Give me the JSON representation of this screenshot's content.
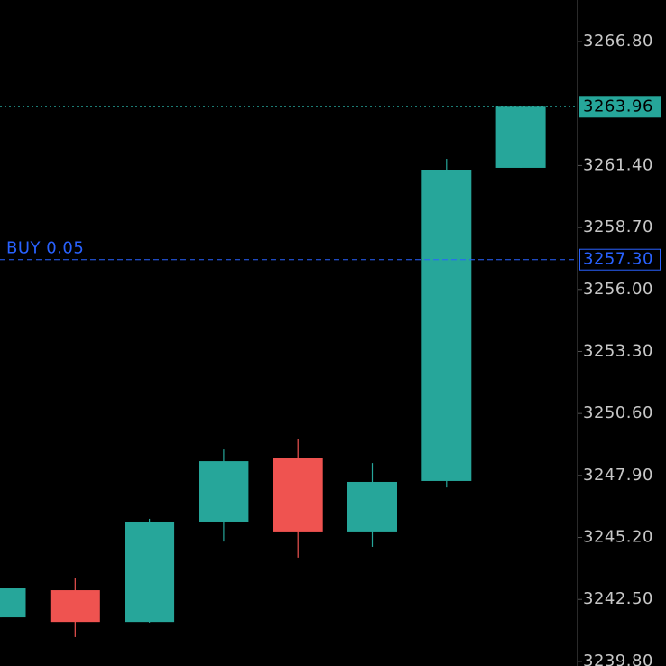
{
  "chart_data": {
    "type": "candlestick",
    "open": [
      3241.72,
      3242.9,
      3241.52,
      3245.89,
      3248.68,
      3245.46,
      3247.66,
      3261.3
    ],
    "high": [
      3242.98,
      3243.45,
      3246.01,
      3249.03,
      3249.5,
      3248.44,
      3261.69,
      3263.96
    ],
    "low": [
      3241.72,
      3240.86,
      3241.49,
      3245.02,
      3244.32,
      3244.79,
      3247.38,
      3261.3
    ],
    "close": [
      3242.98,
      3241.52,
      3245.89,
      3248.52,
      3245.46,
      3247.62,
      3261.22,
      3263.96
    ],
    "up_color": "#26a69a",
    "down_color": "#ef5350",
    "ylim": [
      3239.6,
      3268.61
    ],
    "yticks": [
      {
        "value": 3266.8,
        "label": "3266.80"
      },
      {
        "value": 3261.4,
        "label": "3261.40"
      },
      {
        "value": 3258.7,
        "label": "3258.70"
      },
      {
        "value": 3256.0,
        "label": "3256.00"
      },
      {
        "value": 3253.3,
        "label": "3253.30"
      },
      {
        "value": 3250.6,
        "label": "3250.60"
      },
      {
        "value": 3247.9,
        "label": "3247.90"
      },
      {
        "value": 3245.2,
        "label": "3245.20"
      },
      {
        "value": 3242.5,
        "label": "3242.50"
      },
      {
        "value": 3239.8,
        "label": "3239.80"
      }
    ],
    "current_price": {
      "value": 3263.96,
      "label": "3263.96",
      "color": "#26a69a"
    },
    "order_line": {
      "text": "BUY 0.05",
      "value": 3257.3,
      "label": "3257.30",
      "color": "#2962ff"
    }
  }
}
